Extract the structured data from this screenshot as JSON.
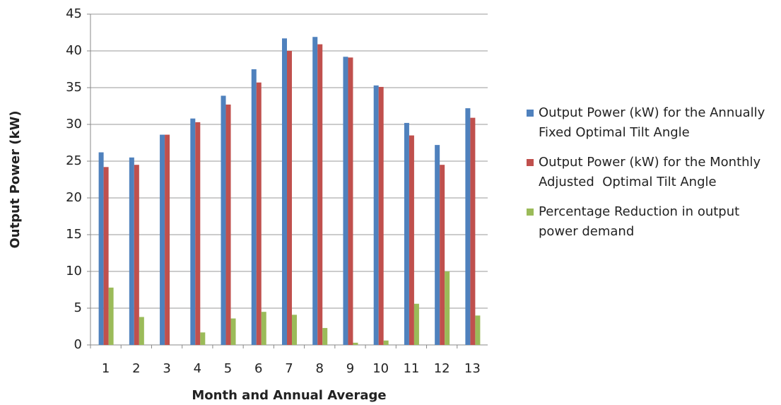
{
  "chart_data": {
    "type": "bar",
    "x_label": "Month and Annual Average",
    "y_label": "Output Power  (kW)",
    "categories": [
      "1",
      "2",
      "3",
      "4",
      "5",
      "6",
      "7",
      "8",
      "9",
      "10",
      "11",
      "12",
      "13"
    ],
    "series": [
      {
        "name": "Output Power (kW) for the Annually Fixed Optimal Tilt Angle",
        "color": "#4f81bd",
        "values": [
          26.2,
          25.5,
          28.6,
          30.8,
          33.9,
          37.5,
          41.7,
          41.9,
          39.2,
          35.3,
          30.2,
          27.2,
          32.2
        ]
      },
      {
        "name": "Output Power (kW) for the Monthly Adjusted  Optimal Tilt Angle",
        "color": "#c0504d",
        "values": [
          24.2,
          24.5,
          28.6,
          30.3,
          32.7,
          35.7,
          40.0,
          40.9,
          39.1,
          35.1,
          28.5,
          24.5,
          30.9
        ]
      },
      {
        "name": "Percentage Reduction in output power demand",
        "color": "#9bbb59",
        "values": [
          7.8,
          3.8,
          0,
          1.7,
          3.6,
          4.5,
          4.1,
          2.3,
          0.3,
          0.6,
          5.6,
          10.0,
          4.0
        ]
      }
    ],
    "ylim": [
      0,
      45
    ],
    "yticks": [
      0,
      5,
      10,
      15,
      20,
      25,
      30,
      35,
      40,
      45
    ],
    "grid": true,
    "legend": "right"
  }
}
